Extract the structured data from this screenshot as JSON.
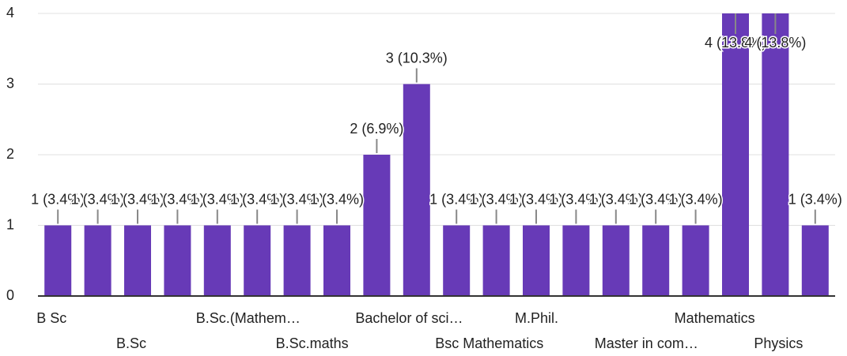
{
  "chart_data": {
    "type": "bar",
    "categories": [
      "B Sc",
      null,
      "B.Sc",
      null,
      "B.Sc.(Mathem…",
      null,
      "B.Sc.maths",
      null,
      "Bachelor of sci…",
      null,
      "Bsc Mathematics",
      null,
      "M.Phil.",
      null,
      "Master in com…",
      null,
      "Mathematics",
      null,
      "Physics",
      null
    ],
    "values": [
      1,
      1,
      1,
      1,
      1,
      1,
      1,
      1,
      2,
      3,
      1,
      1,
      1,
      1,
      1,
      1,
      1,
      4,
      4,
      1
    ],
    "value_labels": [
      "1 (3.4%)",
      "1 (3.4%)",
      "1 (3.4%)",
      "1 (3.4%)",
      "1 (3.4%)",
      "1 (3.4%)",
      "1 (3.4%)",
      "1 (3.4%)",
      "2 (6.9%)",
      "3 (10.3%)",
      "1 (3.4%)",
      "1 (3.4%)",
      "1 (3.4%)",
      "1 (3.4%)",
      "1 (3.4%)",
      "1 (3.4%)",
      "1 (3.4%)",
      "4 (13.8%)",
      "4 (13.8%)",
      "1 (3.4%)"
    ],
    "color": "#673ab7",
    "ylim": [
      0,
      4
    ],
    "yticks": [
      0,
      1,
      2,
      3,
      4
    ],
    "grid": true
  }
}
